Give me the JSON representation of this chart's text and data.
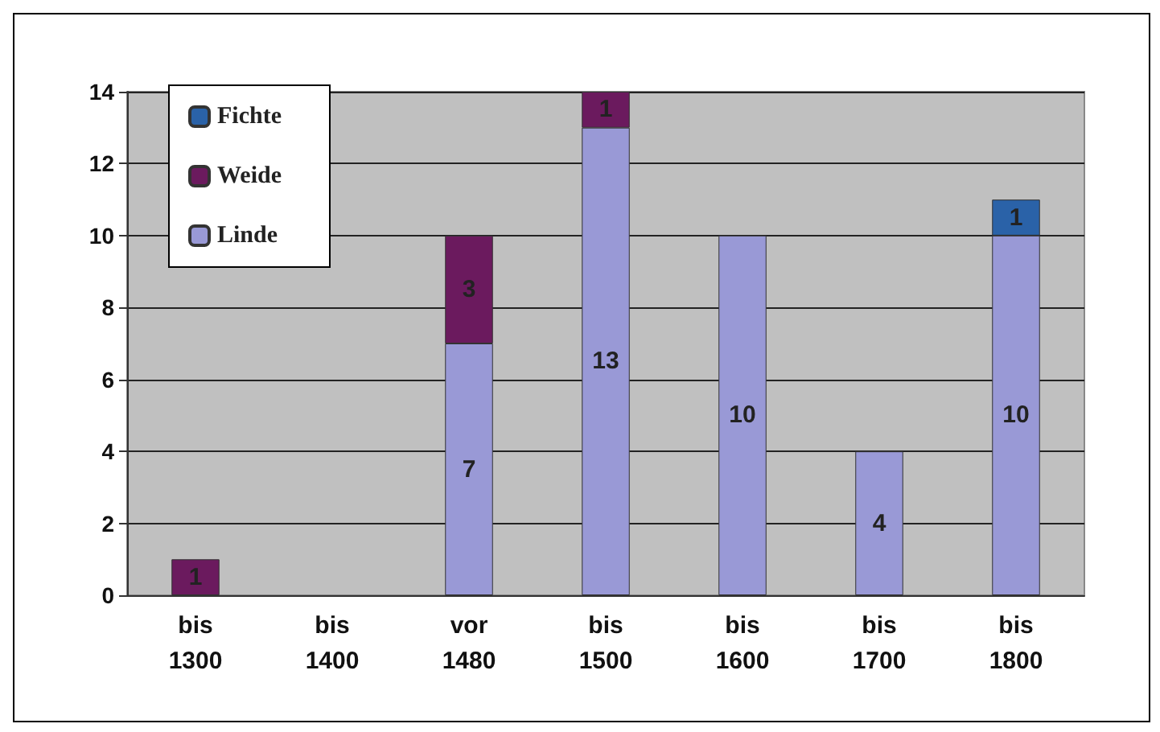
{
  "chart_data": {
    "type": "bar",
    "stacked": true,
    "categories": [
      "bis 1300",
      "bis 1400",
      "vor 1480",
      "bis 1500",
      "bis 1600",
      "bis 1700",
      "bis 1800"
    ],
    "series": [
      {
        "name": "Linde",
        "color": "#9999d6",
        "values": [
          null,
          null,
          7,
          13,
          10,
          4,
          10
        ]
      },
      {
        "name": "Weide",
        "color": "#6b1a5e",
        "values": [
          1,
          null,
          3,
          1,
          null,
          null,
          null
        ]
      },
      {
        "name": "Fichte",
        "color": "#2a62a8",
        "values": [
          null,
          null,
          null,
          null,
          null,
          null,
          1
        ]
      }
    ],
    "ylim": [
      0,
      14
    ],
    "yticks": [
      0,
      2,
      4,
      6,
      8,
      10,
      12,
      14
    ],
    "grid": "y",
    "legend": "top left",
    "data_labels": true
  }
}
